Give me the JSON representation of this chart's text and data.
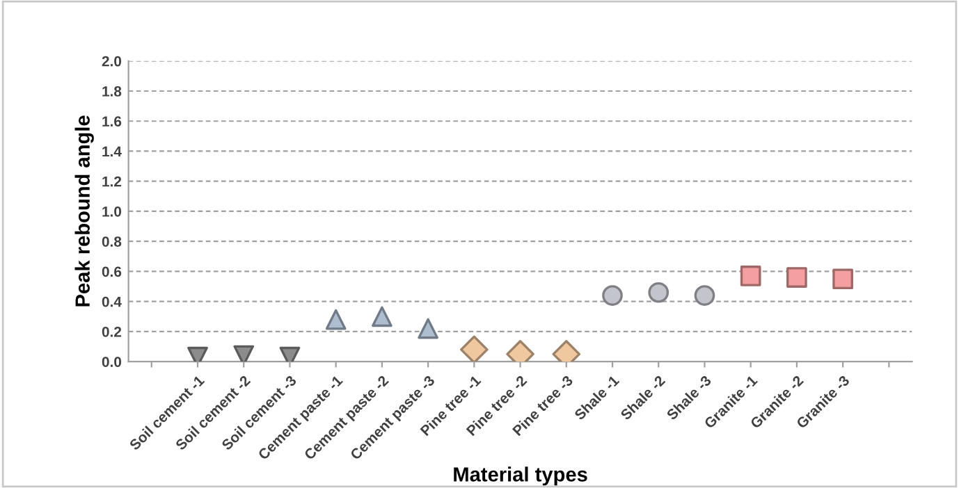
{
  "chart_data": {
    "type": "scatter",
    "xlabel": "Material types",
    "ylabel": "Peak rebound angle",
    "categories": [
      "Soil cement -1",
      "Soil cement -2",
      "Soil cement -3",
      "Cement paste -1",
      "Cement paste -2",
      "Cement paste -3",
      "Pine tree -1",
      "Pine tree -2",
      "Pine tree -3",
      "Shale -1",
      "Shale -2",
      "Shale -3",
      "Granite -1",
      "Granite -2",
      "Granite -3"
    ],
    "series": [
      {
        "color": "#8c8c8c",
        "marker": "triangle-down",
        "values": [
          0.03,
          0.04,
          0.03,
          null,
          null,
          null,
          null,
          null,
          null,
          null,
          null,
          null,
          null,
          null,
          null
        ]
      },
      {
        "color": "#aebdd0",
        "marker": "triangle",
        "values": [
          null,
          null,
          null,
          0.28,
          0.3,
          0.22,
          null,
          null,
          null,
          null,
          null,
          null,
          null,
          null,
          null
        ]
      },
      {
        "color": "#f0c8a0",
        "marker": "diamond",
        "values": [
          null,
          null,
          null,
          null,
          null,
          null,
          0.08,
          0.05,
          0.05,
          null,
          null,
          null,
          null,
          null,
          null
        ]
      },
      {
        "color": "#c4c4cc",
        "marker": "circle",
        "values": [
          null,
          null,
          null,
          null,
          null,
          null,
          null,
          null,
          null,
          0.44,
          0.46,
          0.44,
          null,
          null,
          null
        ]
      },
      {
        "color": "#f5a0a0",
        "marker": "square",
        "values": [
          null,
          null,
          null,
          null,
          null,
          null,
          null,
          null,
          null,
          null,
          null,
          null,
          0.57,
          0.56,
          0.55
        ]
      }
    ],
    "ylim": [
      0,
      2.0
    ],
    "yticks": [
      {
        "value": 0,
        "label": "0.0"
      },
      {
        "value": 0.2,
        "label": "0.2"
      },
      {
        "value": 0.4,
        "label": "0.4"
      },
      {
        "value": 0.6,
        "label": "0.6"
      },
      {
        "value": 0.8,
        "label": "0.8"
      },
      {
        "value": 1.0,
        "label": "1.0"
      },
      {
        "value": 1.2,
        "label": "1.2"
      },
      {
        "value": 1.4,
        "label": "1.4"
      },
      {
        "value": 1.6,
        "label": "1.6"
      },
      {
        "value": 1.8,
        "label": "1.8"
      },
      {
        "value": 2.0,
        "label": "2.0"
      }
    ],
    "grid": "y",
    "legend": false
  }
}
